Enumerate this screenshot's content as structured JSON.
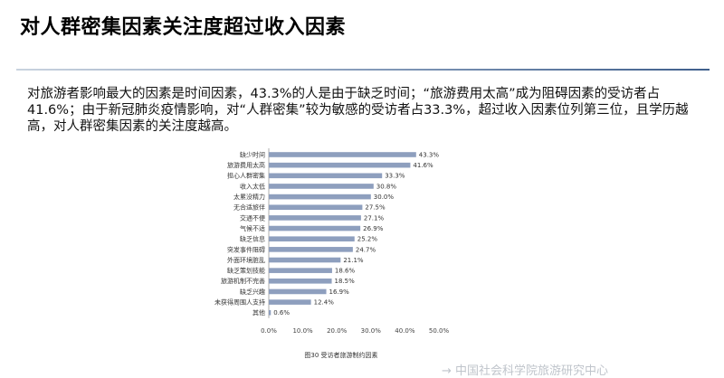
{
  "slide": {
    "title": "对人群密集因素关注度超过收入因素",
    "summary": "对旅游者影响最大的因素是时间因素，43.3%的人是由于缺乏时间；“旅游费用太高”成为阻碍因素的受访者占41.6%；由于新冠肺炎疫情影响，对“人群密集”较为敏感的受访者占33.3%，超过收入因素位列第三位，且学历越高，对人群密集因素的关注度越高。"
  },
  "watermark": "→ 中国社会科学院旅游研究中心",
  "colors": {
    "bar": "#8e9fbe",
    "title_rule_dark": "#3f5f8c"
  },
  "chart_data": {
    "type": "bar",
    "orientation": "horizontal",
    "caption": "图30 受访者旅游制约因素",
    "categories": [
      "缺少时间",
      "旅游费用太高",
      "担心人群密集",
      "收入太低",
      "太累没精力",
      "无合适旅伴",
      "交通不便",
      "气候不适",
      "缺乏信息",
      "突发事件阻碍",
      "外面环境脏乱",
      "缺乏策划技能",
      "旅游机制不完善",
      "缺乏兴趣",
      "未获得周围人支持",
      "其他"
    ],
    "values": [
      43.3,
      41.6,
      33.3,
      30.8,
      30.0,
      27.5,
      27.1,
      26.9,
      25.2,
      24.7,
      21.1,
      18.6,
      18.5,
      16.9,
      12.4,
      0.6
    ],
    "value_labels": [
      "43.3%",
      "41.6%",
      "33.3%",
      "30.8%",
      "30.0%",
      "27.5%",
      "27.1%",
      "26.9%",
      "25.2%",
      "24.7%",
      "21.1%",
      "18.6%",
      "18.5%",
      "16.9%",
      "12.4%",
      "0.6%"
    ],
    "xlim": [
      0,
      50
    ],
    "xticks": [
      0,
      10,
      20,
      30,
      40,
      50
    ],
    "xtick_labels": [
      "0.0%",
      "10.0%",
      "20.0%",
      "30.0%",
      "40.0%",
      "50.0%"
    ],
    "grid": false,
    "legend": "none"
  }
}
